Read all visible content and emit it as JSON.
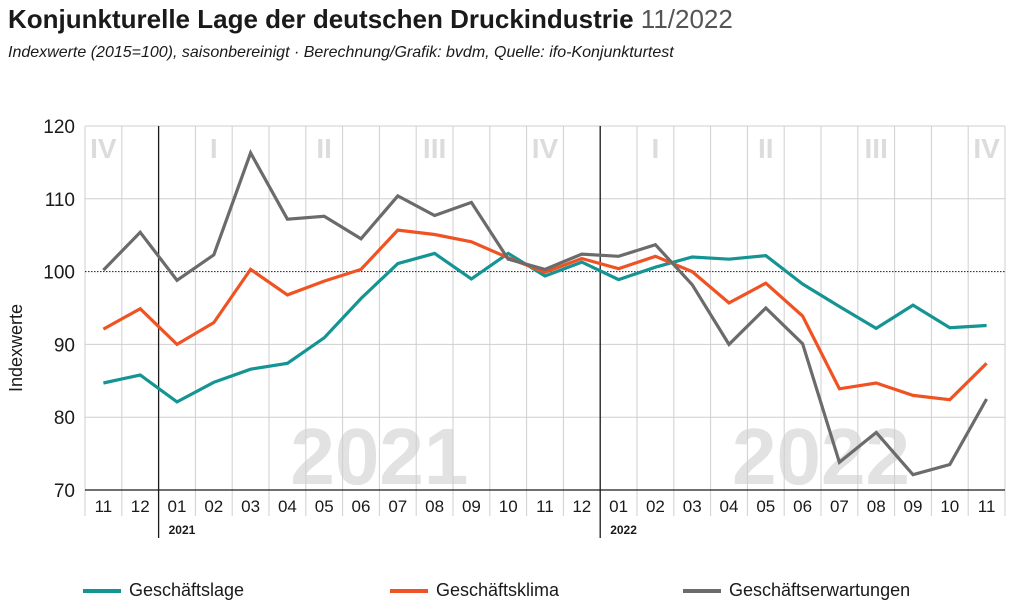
{
  "title": "Konjunkturelle Lage der deutschen Druckindustrie",
  "title_suffix": "11/2022",
  "subtitle": "Indexwerte (2015=100), saisonbereinigt · Berechnung/Grafik: bvdm, Quelle: ifo-Konjunkturtest",
  "chart_data": {
    "type": "line",
    "ylabel": "Indexwerte",
    "ylim": [
      70,
      120
    ],
    "yticks": [
      70,
      80,
      90,
      100,
      110,
      120
    ],
    "grid": true,
    "reference_line": 100,
    "legend_position": "bottom",
    "categories": [
      "11",
      "12",
      "01",
      "02",
      "03",
      "04",
      "05",
      "06",
      "07",
      "08",
      "09",
      "10",
      "11",
      "12",
      "01",
      "02",
      "03",
      "04",
      "05",
      "06",
      "07",
      "08",
      "09",
      "10",
      "11"
    ],
    "year_labels": [
      {
        "at_index": 2,
        "label": "2021"
      },
      {
        "at_index": 14,
        "label": "2022"
      }
    ],
    "background_years": [
      {
        "label": "2021",
        "center_index": 7.5
      },
      {
        "label": "2022",
        "center_index": 19.5
      }
    ],
    "quarters": [
      {
        "label": "IV",
        "center_index": 0
      },
      {
        "label": "I",
        "center_index": 3
      },
      {
        "label": "II",
        "center_index": 6
      },
      {
        "label": "III",
        "center_index": 9
      },
      {
        "label": "IV",
        "center_index": 12
      },
      {
        "label": "I",
        "center_index": 15
      },
      {
        "label": "II",
        "center_index": 18
      },
      {
        "label": "III",
        "center_index": 21
      },
      {
        "label": "IV",
        "center_index": 24
      }
    ],
    "series": [
      {
        "name": "Geschäftslage",
        "color": "#159494",
        "values": [
          84.7,
          85.8,
          82.1,
          84.8,
          86.6,
          87.4,
          90.9,
          96.3,
          101.1,
          102.5,
          99.0,
          102.5,
          99.4,
          101.3,
          98.9,
          100.6,
          102.0,
          101.7,
          102.2,
          98.3,
          95.2,
          92.2,
          95.4,
          92.3,
          92.6
        ]
      },
      {
        "name": "Geschäftsklima",
        "color": "#f05323",
        "values": [
          92.1,
          94.9,
          90.0,
          93.0,
          100.3,
          96.8,
          98.7,
          100.3,
          105.7,
          105.1,
          104.1,
          101.9,
          99.9,
          101.8,
          100.4,
          102.1,
          100.0,
          95.7,
          98.4,
          93.9,
          83.9,
          84.7,
          83.0,
          82.4,
          87.4
        ]
      },
      {
        "name": "Geschäftserwartungen",
        "color": "#6b6b6b",
        "values": [
          100.2,
          105.4,
          98.8,
          102.3,
          116.3,
          107.2,
          107.6,
          104.5,
          110.4,
          107.7,
          109.5,
          101.7,
          100.3,
          102.4,
          102.1,
          103.7,
          98.2,
          90.0,
          95.0,
          90.1,
          73.8,
          77.9,
          72.1,
          73.5,
          82.5
        ]
      }
    ]
  }
}
